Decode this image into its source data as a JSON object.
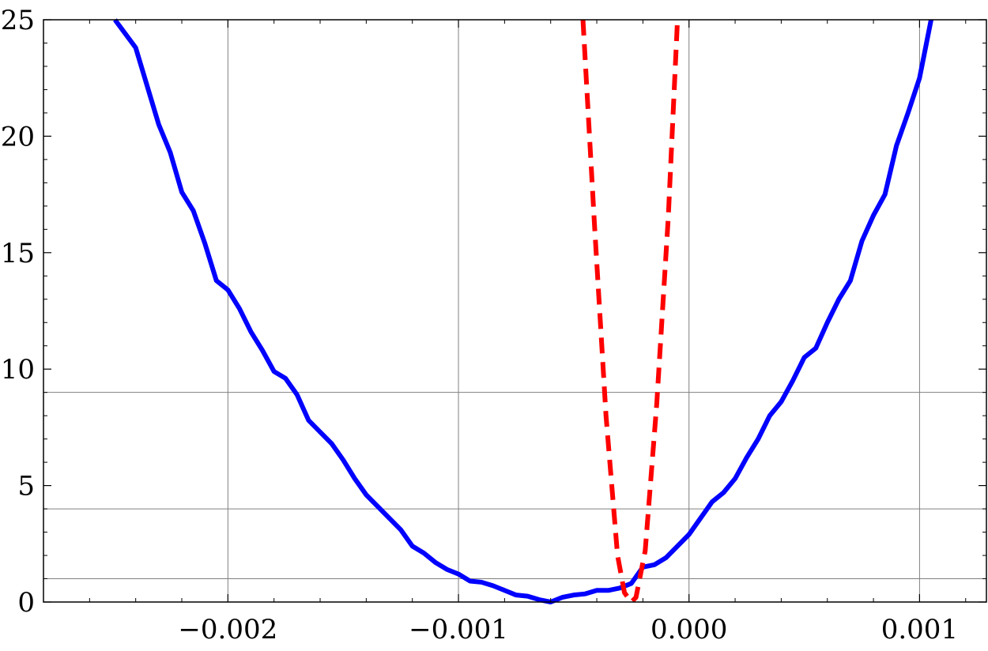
{
  "chart_data": {
    "type": "line",
    "title": "",
    "xlabel": "",
    "ylabel": "",
    "xlim": [
      -0.0028,
      0.00129
    ],
    "ylim": [
      0,
      25
    ],
    "x_ticks": [
      -0.002,
      -0.001,
      0.0,
      0.001
    ],
    "x_tick_labels": [
      "−0.002",
      "−0.001",
      "0.000",
      "0.001"
    ],
    "y_ticks": [
      0,
      5,
      10,
      15,
      20,
      25
    ],
    "y_tick_labels": [
      "0",
      "5",
      "10",
      "15",
      "20",
      "25"
    ],
    "vertical_gridlines": [
      -0.002,
      -0.001,
      0.0,
      0.001
    ],
    "horizontal_gridlines": [
      1,
      4,
      9
    ],
    "colors": {
      "series1": "#0000ff",
      "series2": "#ff0000",
      "grid": "#808080",
      "axes": "#000000"
    },
    "series": [
      {
        "style": "solid",
        "color": "#0000ff",
        "x": [
          -0.00249,
          -0.0024,
          -0.0023,
          -0.00225,
          -0.0022,
          -0.00215,
          -0.0021,
          -0.00205,
          -0.002,
          -0.00195,
          -0.0019,
          -0.00185,
          -0.0018,
          -0.00175,
          -0.0017,
          -0.00165,
          -0.0016,
          -0.00155,
          -0.0015,
          -0.00145,
          -0.0014,
          -0.00135,
          -0.0013,
          -0.00125,
          -0.0012,
          -0.00115,
          -0.0011,
          -0.00105,
          -0.001,
          -0.00095,
          -0.0009,
          -0.00085,
          -0.0008,
          -0.00075,
          -0.0007,
          -0.00065,
          -0.0006,
          -0.00055,
          -0.0005,
          -0.00045,
          -0.0004,
          -0.00035,
          -0.0003,
          -0.00025,
          -0.0002,
          -0.00015,
          -0.0001,
          -5e-05,
          0.0,
          5e-05,
          0.0001,
          0.00015,
          0.0002,
          0.00025,
          0.0003,
          0.00035,
          0.0004,
          0.00045,
          0.0005,
          0.00055,
          0.0006,
          0.00065,
          0.0007,
          0.00075,
          0.0008,
          0.00085,
          0.0009,
          0.00095,
          0.001,
          0.00105
        ],
        "y": [
          25.0,
          23.8,
          20.5,
          19.3,
          17.6,
          16.8,
          15.4,
          13.8,
          13.4,
          12.6,
          11.6,
          10.8,
          9.9,
          9.6,
          8.9,
          7.8,
          7.3,
          6.8,
          6.1,
          5.3,
          4.6,
          4.1,
          3.6,
          3.1,
          2.4,
          2.1,
          1.7,
          1.4,
          1.2,
          0.9,
          0.85,
          0.7,
          0.5,
          0.3,
          0.25,
          0.1,
          0.0,
          0.2,
          0.3,
          0.35,
          0.5,
          0.5,
          0.6,
          0.8,
          1.5,
          1.6,
          1.9,
          2.4,
          2.9,
          3.6,
          4.3,
          4.7,
          5.3,
          6.2,
          7.0,
          8.0,
          8.6,
          9.5,
          10.5,
          10.9,
          12.0,
          13.0,
          13.8,
          15.5,
          16.6,
          17.5,
          19.6,
          21.0,
          22.5,
          25.0
        ]
      },
      {
        "style": "dashed",
        "color": "#ff0000",
        "x": [
          -0.00046,
          -0.00041,
          -0.00036,
          -0.00031,
          -0.00028,
          -0.00025,
          -0.00023,
          -0.00019,
          -0.00014,
          -9e-05,
          -5e-05
        ],
        "y": [
          25.0,
          16.2,
          8.0,
          2.0,
          0.4,
          0.0,
          0.2,
          2.2,
          8.5,
          16.5,
          25.0
        ]
      }
    ]
  }
}
